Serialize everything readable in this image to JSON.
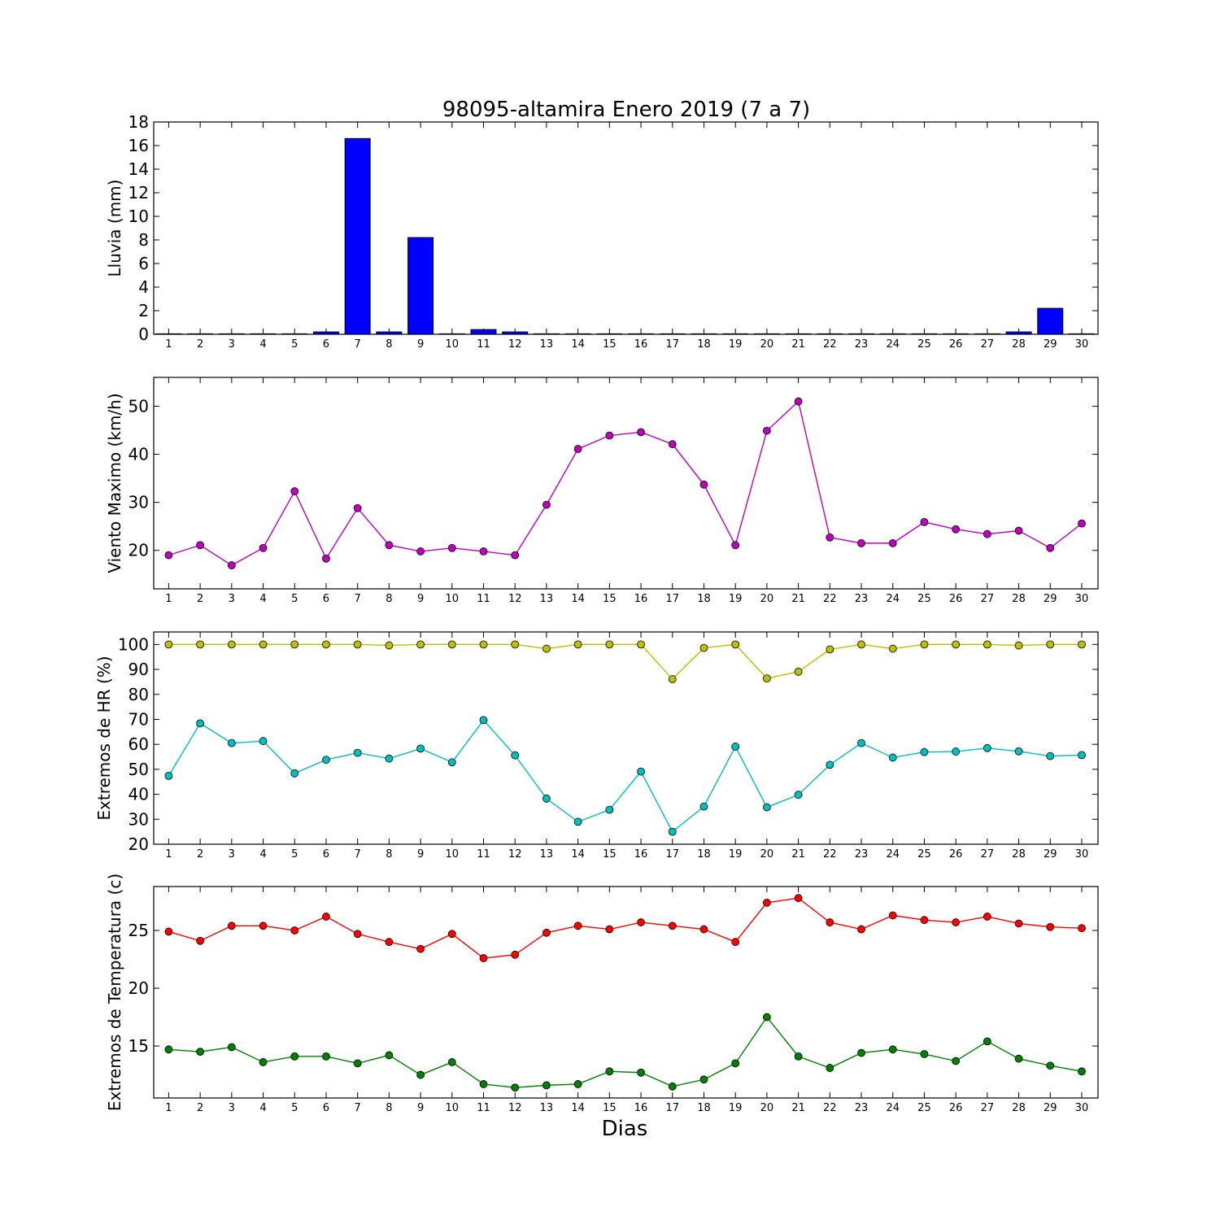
{
  "title": "98095-altamira Enero 2019  (7 a 7)",
  "xlabel": "Dias",
  "colors": {
    "bars": "#0000ff",
    "wind": "#bf00bf",
    "hr_max": "#bfbf00",
    "hr_min": "#00bfbf",
    "t_max": "#ff0000",
    "t_min": "#008000"
  },
  "chart_data": [
    {
      "type": "bar",
      "ylabel": "Lluvia (mm)",
      "categories": [
        "1",
        "2",
        "3",
        "4",
        "5",
        "6",
        "7",
        "8",
        "9",
        "10",
        "11",
        "12",
        "13",
        "14",
        "15",
        "16",
        "17",
        "18",
        "19",
        "20",
        "21",
        "22",
        "23",
        "24",
        "25",
        "26",
        "27",
        "28",
        "29",
        "30"
      ],
      "values": [
        0,
        0,
        0,
        0,
        0,
        0.2,
        16.6,
        0.2,
        8.2,
        0,
        0.4,
        0.2,
        0,
        0,
        0,
        0,
        0,
        0,
        0,
        0,
        0,
        0,
        0,
        0,
        0,
        0,
        0,
        0.2,
        2.2,
        0
      ],
      "ylim": [
        0,
        18
      ],
      "yticks": [
        0,
        2,
        4,
        6,
        8,
        10,
        12,
        14,
        16,
        18
      ]
    },
    {
      "type": "line",
      "ylabel": "Viento Maximo (km/h)",
      "categories": [
        "1",
        "2",
        "3",
        "4",
        "5",
        "6",
        "7",
        "8",
        "9",
        "10",
        "11",
        "12",
        "13",
        "14",
        "15",
        "16",
        "17",
        "18",
        "19",
        "20",
        "21",
        "22",
        "23",
        "24",
        "25",
        "26",
        "27",
        "28",
        "29",
        "30"
      ],
      "series": [
        {
          "values": [
            19.0,
            21.1,
            16.9,
            20.5,
            32.3,
            18.3,
            28.8,
            21.1,
            19.8,
            20.5,
            19.8,
            19.0,
            29.5,
            41.1,
            43.9,
            44.6,
            42.1,
            33.7,
            21.1,
            44.9,
            51.0,
            22.7,
            21.5,
            21.5,
            25.9,
            24.4,
            23.4,
            24.1,
            20.5,
            25.6
          ]
        }
      ],
      "ylim": [
        12,
        56
      ],
      "yticks": [
        20,
        30,
        40,
        50
      ]
    },
    {
      "type": "line",
      "ylabel": "Extremos de HR (%)",
      "categories": [
        "1",
        "2",
        "3",
        "4",
        "5",
        "6",
        "7",
        "8",
        "9",
        "10",
        "11",
        "12",
        "13",
        "14",
        "15",
        "16",
        "17",
        "18",
        "19",
        "20",
        "21",
        "22",
        "23",
        "24",
        "25",
        "26",
        "27",
        "28",
        "29",
        "30"
      ],
      "series": [
        {
          "values": [
            100,
            100,
            100,
            100,
            100,
            100,
            100,
            99.6,
            100,
            100,
            100,
            100,
            98.3,
            100,
            100,
            100,
            86.1,
            98.6,
            100,
            86.4,
            89.1,
            98.0,
            100,
            98.3,
            100,
            100,
            100,
            99.6,
            100,
            100
          ]
        },
        {
          "values": [
            47.4,
            68.4,
            60.5,
            61.3,
            48.4,
            53.8,
            56.6,
            54.3,
            58.3,
            52.8,
            69.7,
            55.6,
            38.3,
            29.0,
            33.8,
            49.1,
            25.0,
            35.1,
            59.1,
            34.8,
            39.8,
            51.8,
            60.5,
            54.7,
            56.9,
            57.1,
            58.5,
            57.2,
            55.3,
            55.7
          ]
        }
      ],
      "ylim": [
        20,
        105
      ],
      "yticks": [
        20,
        30,
        40,
        50,
        60,
        70,
        80,
        90,
        100
      ]
    },
    {
      "type": "line",
      "ylabel": "Extremos de Temperatura (c)",
      "categories": [
        "1",
        "2",
        "3",
        "4",
        "5",
        "6",
        "7",
        "8",
        "9",
        "10",
        "11",
        "12",
        "13",
        "14",
        "15",
        "16",
        "17",
        "18",
        "19",
        "20",
        "21",
        "22",
        "23",
        "24",
        "25",
        "26",
        "27",
        "28",
        "29",
        "30"
      ],
      "series": [
        {
          "values": [
            24.9,
            24.1,
            25.4,
            25.4,
            25.0,
            26.2,
            24.7,
            24.0,
            23.4,
            24.7,
            22.6,
            22.9,
            24.8,
            25.4,
            25.1,
            25.7,
            25.4,
            25.1,
            24.0,
            27.4,
            27.8,
            25.7,
            25.1,
            26.3,
            25.9,
            25.7,
            26.2,
            25.6,
            25.3,
            25.2
          ]
        },
        {
          "values": [
            14.7,
            14.5,
            14.9,
            13.6,
            14.1,
            14.1,
            13.5,
            14.2,
            12.5,
            13.6,
            11.7,
            11.4,
            11.6,
            11.7,
            12.8,
            12.7,
            11.5,
            12.1,
            13.5,
            17.5,
            14.1,
            13.1,
            14.4,
            14.7,
            14.3,
            13.7,
            15.4,
            13.9,
            13.3,
            12.8
          ]
        }
      ],
      "ylim": [
        10.5,
        28.8
      ],
      "yticks": [
        15,
        20,
        25
      ]
    }
  ]
}
